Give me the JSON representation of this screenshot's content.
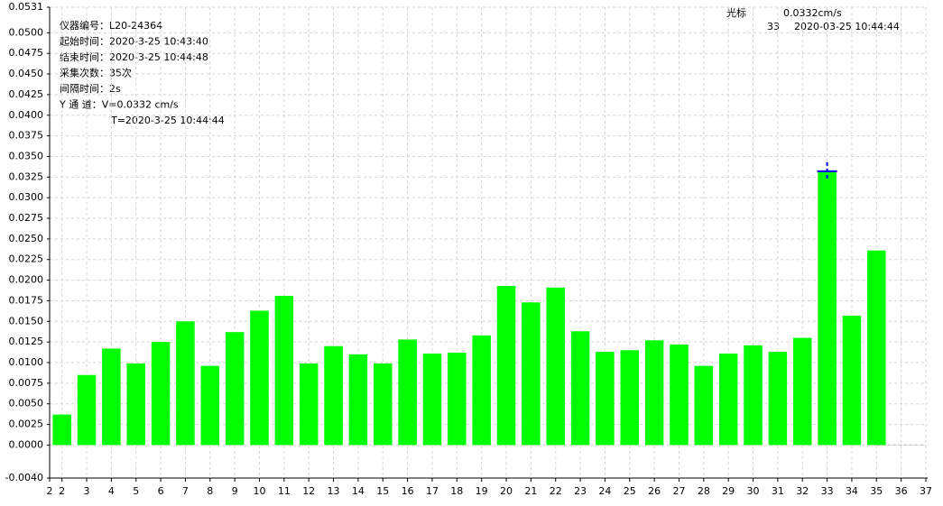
{
  "chart_data": {
    "type": "bar",
    "x": [
      2,
      3,
      4,
      5,
      6,
      7,
      8,
      9,
      10,
      11,
      12,
      13,
      14,
      15,
      16,
      17,
      18,
      19,
      20,
      21,
      22,
      23,
      24,
      25,
      26,
      27,
      28,
      29,
      30,
      31,
      32,
      33,
      34,
      35
    ],
    "values": [
      0.0037,
      0.0085,
      0.0117,
      0.0099,
      0.0125,
      0.015,
      0.0096,
      0.0137,
      0.0163,
      0.0181,
      0.0099,
      0.012,
      0.011,
      0.0099,
      0.0128,
      0.0111,
      0.0112,
      0.0133,
      0.0193,
      0.0173,
      0.0191,
      0.0138,
      0.0113,
      0.0115,
      0.0127,
      0.0122,
      0.0096,
      0.0111,
      0.0121,
      0.0113,
      0.013,
      0.0332,
      0.0157,
      0.0236
    ],
    "color": "#00ff00",
    "xlim": [
      1.5,
      37
    ],
    "xticks": [
      {
        "value": 1.5,
        "label": "2"
      },
      2,
      3,
      4,
      5,
      6,
      7,
      8,
      9,
      10,
      11,
      12,
      13,
      14,
      15,
      16,
      17,
      18,
      19,
      20,
      21,
      22,
      23,
      24,
      25,
      26,
      27,
      28,
      29,
      30,
      31,
      32,
      33,
      34,
      35,
      36,
      37
    ],
    "ylim": [
      -0.004,
      0.0531
    ],
    "yticks": [
      {
        "value": -0.004,
        "label": "-0.0040"
      },
      {
        "value": 0,
        "label": "0.0000"
      },
      {
        "value": 0.0025,
        "label": "0.0025"
      },
      {
        "value": 0.005,
        "label": "0.0050"
      },
      {
        "value": 0.0075,
        "label": "0.0075"
      },
      {
        "value": 0.01,
        "label": "0.0100"
      },
      {
        "value": 0.0125,
        "label": "0.0125"
      },
      {
        "value": 0.015,
        "label": "0.0150"
      },
      {
        "value": 0.0175,
        "label": "0.0175"
      },
      {
        "value": 0.02,
        "label": "0.0200"
      },
      {
        "value": 0.0225,
        "label": "0.0225"
      },
      {
        "value": 0.025,
        "label": "0.0250"
      },
      {
        "value": 0.0275,
        "label": "0.0275"
      },
      {
        "value": 0.03,
        "label": "0.0300"
      },
      {
        "value": 0.0325,
        "label": "0.0325"
      },
      {
        "value": 0.035,
        "label": "0.0350"
      },
      {
        "value": 0.0375,
        "label": "0.0375"
      },
      {
        "value": 0.04,
        "label": "0.0400"
      },
      {
        "value": 0.0425,
        "label": "0.0425"
      },
      {
        "value": 0.045,
        "label": "0.0450"
      },
      {
        "value": 0.0475,
        "label": "0.0475"
      },
      {
        "value": 0.05,
        "label": "0.0500"
      },
      {
        "value": 0.0531,
        "label": "0.0531"
      }
    ],
    "grid": true,
    "info": [
      "仪器编号：L20-24364",
      "起始时间：2020-3-25 10:43:40",
      "结束时间：2020-3-25 10:44:48",
      "采集次数：35次",
      "间隔时间：2s",
      "Y 通 道：V=0.0332 cm/s",
      "T=2020-3-25 10:44:44"
    ],
    "cursor": {
      "label": "光标",
      "reading": "0.0332cm/s",
      "index": "33",
      "time": "2020-03-25 10:44:44"
    }
  }
}
